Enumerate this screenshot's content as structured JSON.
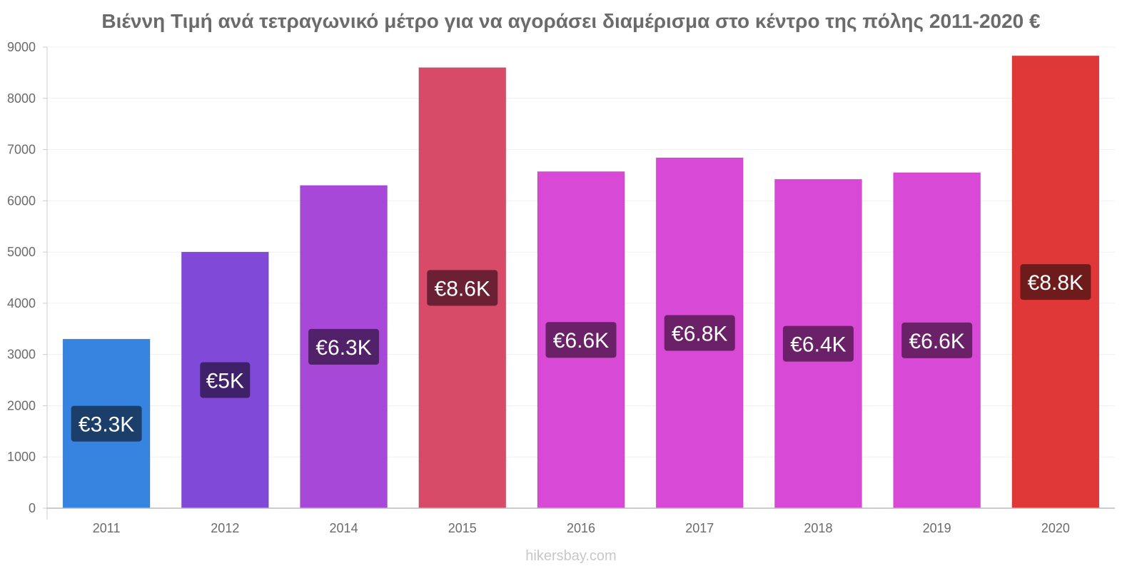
{
  "title": "Βιέννη Τιμή ανά τετραγωνικό μέτρο για να αγοράσει διαμέρισμα στο κέντρο της πόλης 2011-2020 €",
  "footer": "hikersbay.com",
  "chart_data": {
    "type": "bar",
    "title": "Βιέννη Τιμή ανά τετραγωνικό μέτρο για να αγοράσει διαμέρισμα στο κέντρο της πόλης 2011-2020 €",
    "categories": [
      "2011",
      "2012",
      "2014",
      "2015",
      "2016",
      "2017",
      "2018",
      "2019",
      "2020"
    ],
    "values": [
      3300,
      5000,
      6300,
      8600,
      6570,
      6840,
      6420,
      6550,
      8830
    ],
    "value_labels": [
      "€3.3K",
      "€5K",
      "€6.3K",
      "€8.6K",
      "€6.6K",
      "€6.8K",
      "€6.4K",
      "€6.6K",
      "€8.8K"
    ],
    "bar_colors": [
      "#3684e0",
      "#8049d8",
      "#a848d8",
      "#d84b68",
      "#d84ad6",
      "#d84ad6",
      "#d84ad6",
      "#d84ad6",
      "#e03838"
    ],
    "label_bg_colors": [
      "#1b3e6b",
      "#3f2169",
      "#51216a",
      "#6b2133",
      "#6a2168",
      "#6a2168",
      "#6a2168",
      "#6a2168",
      "#6e1b1b"
    ],
    "yticks": [
      0,
      1000,
      2000,
      3000,
      4000,
      5000,
      6000,
      7000,
      8000,
      9000
    ],
    "ylim": [
      0,
      9000
    ],
    "xlabel": "",
    "ylabel": "",
    "grid": true,
    "legend": "none"
  }
}
